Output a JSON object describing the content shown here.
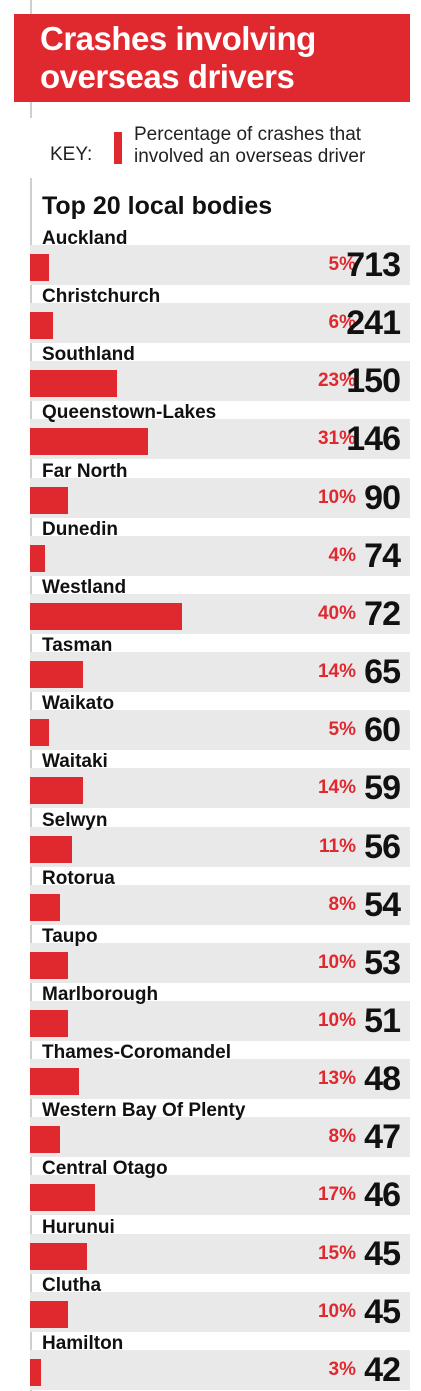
{
  "title_line1": "Crashes involving",
  "title_line2": "overseas drivers",
  "key": {
    "label": "KEY:",
    "desc_line1": "Percentage of crashes that",
    "desc_line2": "involved an overseas driver",
    "color": "#e0282f"
  },
  "chart_data": {
    "type": "bar",
    "title": "Top 20 local bodies",
    "categories": [
      "Auckland",
      "Christchurch",
      "Southland",
      "Queenstown-Lakes",
      "Far North",
      "Dunedin",
      "Westland",
      "Tasman",
      "Waikato",
      "Waitaki",
      "Selwyn",
      "Rotorua",
      "Taupo",
      "Marlborough",
      "Thames-Coromandel",
      "Western Bay Of Plenty",
      "Central Otago",
      "Hurunui",
      "Clutha",
      "Hamilton"
    ],
    "series": [
      {
        "name": "Percentage of crashes that involved an overseas driver",
        "values": [
          5,
          6,
          23,
          31,
          10,
          4,
          40,
          14,
          5,
          14,
          11,
          8,
          10,
          10,
          13,
          8,
          17,
          15,
          10,
          3
        ],
        "labels": [
          "5%",
          "6%",
          "23%",
          "31%",
          "10%",
          "4%",
          "40%",
          "14%",
          "5%",
          "14%",
          "11%",
          "8%",
          "10%",
          "10%",
          "13%",
          "8%",
          "17%",
          "15%",
          "10%",
          "3%"
        ]
      },
      {
        "values": [
          713,
          241,
          150,
          146,
          90,
          74,
          72,
          65,
          60,
          59,
          56,
          54,
          53,
          51,
          48,
          47,
          46,
          45,
          45,
          42
        ],
        "labels": [
          "713",
          "241",
          "150",
          "146",
          "90",
          "74",
          "72",
          "65",
          "60",
          "59",
          "56",
          "54",
          "53",
          "51",
          "48",
          "47",
          "46",
          "45",
          "45",
          "42"
        ]
      }
    ],
    "bar_color": "#e0282f",
    "row_color": "#e9e9ea",
    "bar_full_scale_pct": 100
  }
}
